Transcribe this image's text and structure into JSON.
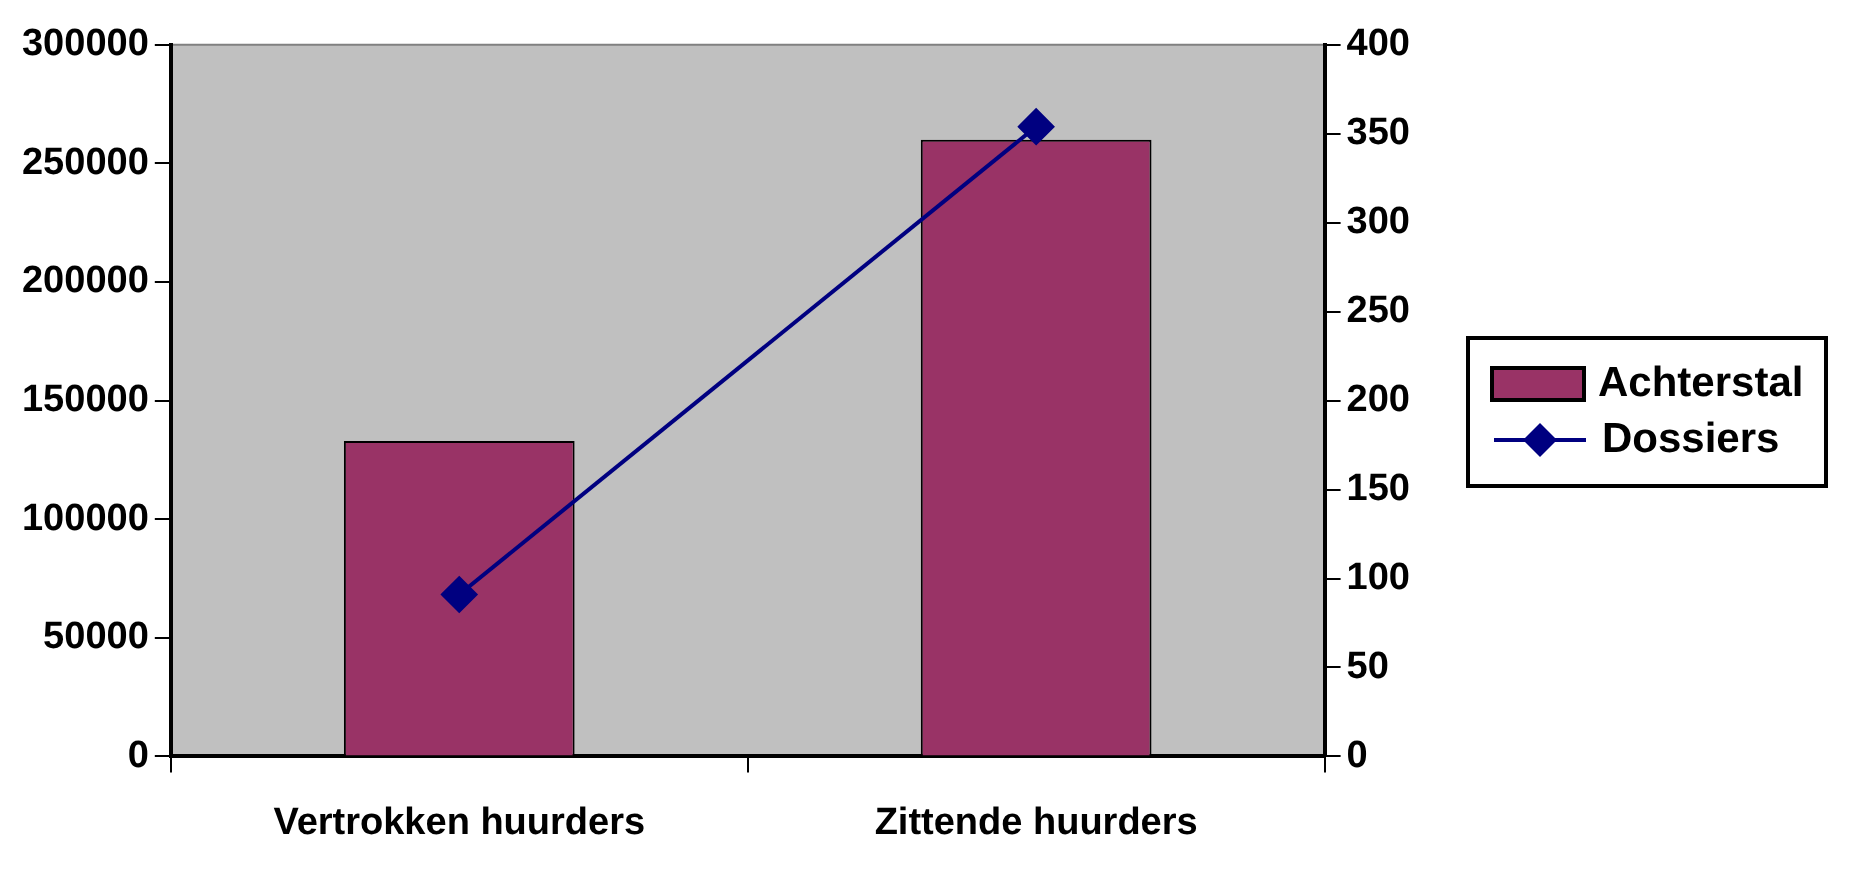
{
  "chart_data": {
    "type": "bar",
    "categories": [
      "Vertrokken huurders",
      "Zittende huurders"
    ],
    "series": [
      {
        "name": "Achterstal",
        "color": "#993366",
        "values": [
          133000,
          260000
        ]
      },
      {
        "name": "Dossiers",
        "type": "line",
        "axis": "y2",
        "color": "#000080",
        "values": [
          91,
          354
        ],
        "marker": "diamond"
      }
    ],
    "ylim": [
      0,
      300000
    ],
    "yticks": [
      0,
      50000,
      100000,
      150000,
      200000,
      250000,
      300000
    ],
    "y2lim": [
      0,
      400
    ],
    "y2ticks": [
      0,
      50,
      100,
      150,
      200,
      250,
      300,
      350,
      400
    ],
    "grid": false,
    "legend": "right"
  }
}
